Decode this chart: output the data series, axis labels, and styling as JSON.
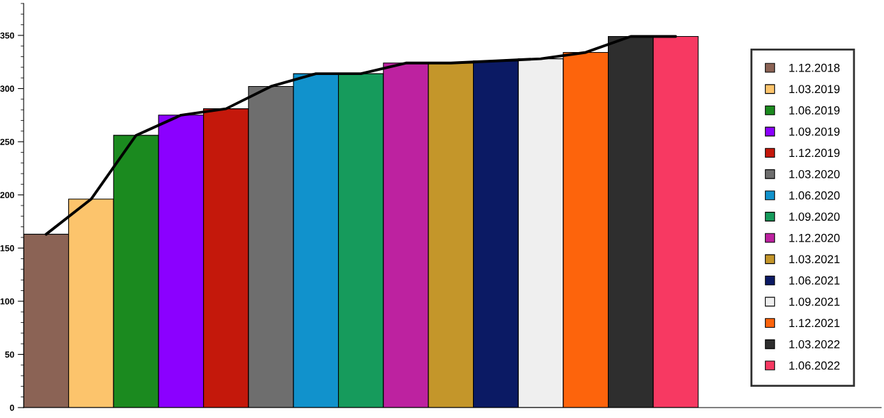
{
  "chart_data": {
    "type": "bar",
    "categories": [
      null,
      null,
      null,
      null,
      null,
      null,
      null,
      null,
      null,
      null,
      null,
      null,
      null,
      null,
      null
    ],
    "series": [
      {
        "name": "1.12.2018",
        "color": "#8b6355",
        "values": [
          163,
          null,
          null,
          null,
          null,
          null,
          null,
          null,
          null,
          null,
          null,
          null,
          null,
          null,
          null
        ]
      },
      {
        "name": "1.03.2019",
        "color": "#fcc46c",
        "values": [
          null,
          196,
          null,
          null,
          null,
          null,
          null,
          null,
          null,
          null,
          null,
          null,
          null,
          null,
          null
        ]
      },
      {
        "name": "1.06.2019",
        "color": "#1b8a1f",
        "values": [
          null,
          null,
          256,
          null,
          null,
          null,
          null,
          null,
          null,
          null,
          null,
          null,
          null,
          null,
          null
        ]
      },
      {
        "name": "1.09.2019",
        "color": "#8b00ff",
        "values": [
          null,
          null,
          null,
          275,
          null,
          null,
          null,
          null,
          null,
          null,
          null,
          null,
          null,
          null,
          null
        ]
      },
      {
        "name": "1.12.2019",
        "color": "#c4180b",
        "values": [
          null,
          null,
          null,
          null,
          281,
          null,
          null,
          null,
          null,
          null,
          null,
          null,
          null,
          null,
          null
        ]
      },
      {
        "name": "1.03.2020",
        "color": "#6e6e6e",
        "values": [
          null,
          null,
          null,
          null,
          null,
          302,
          null,
          null,
          null,
          null,
          null,
          null,
          null,
          null,
          null
        ]
      },
      {
        "name": "1.06.2020",
        "color": "#1192cc",
        "values": [
          null,
          null,
          null,
          null,
          null,
          null,
          314,
          null,
          null,
          null,
          null,
          null,
          null,
          null,
          null
        ]
      },
      {
        "name": "1.09.2020",
        "color": "#169b5c",
        "values": [
          null,
          null,
          null,
          null,
          null,
          null,
          null,
          314,
          null,
          null,
          null,
          null,
          null,
          null,
          null
        ]
      },
      {
        "name": "1.12.2020",
        "color": "#bd22a0",
        "values": [
          null,
          null,
          null,
          null,
          null,
          null,
          null,
          null,
          324,
          null,
          null,
          null,
          null,
          null,
          null
        ]
      },
      {
        "name": "1.03.2021",
        "color": "#c4962a",
        "values": [
          null,
          null,
          null,
          null,
          null,
          null,
          null,
          null,
          null,
          324,
          null,
          null,
          null,
          null,
          null
        ]
      },
      {
        "name": "1.06.2021",
        "color": "#0b1a64",
        "values": [
          null,
          null,
          null,
          null,
          null,
          null,
          null,
          null,
          null,
          null,
          326,
          null,
          null,
          null,
          null
        ]
      },
      {
        "name": "1.09.2021",
        "color": "#efefef",
        "values": [
          null,
          null,
          null,
          null,
          null,
          null,
          null,
          null,
          null,
          null,
          null,
          328,
          null,
          null,
          null
        ]
      },
      {
        "name": "1.12.2021",
        "color": "#fd640c",
        "values": [
          null,
          null,
          null,
          null,
          null,
          null,
          null,
          null,
          null,
          null,
          null,
          null,
          334,
          null,
          null
        ]
      },
      {
        "name": "1.03.2022",
        "color": "#2e2e2e",
        "values": [
          null,
          null,
          null,
          null,
          null,
          null,
          null,
          null,
          null,
          null,
          null,
          null,
          null,
          349,
          null
        ]
      },
      {
        "name": "1.06.2022",
        "color": "#f73962",
        "values": [
          null,
          null,
          null,
          null,
          null,
          null,
          null,
          null,
          null,
          null,
          null,
          null,
          null,
          null,
          349
        ]
      },
      {
        "type": "line",
        "color": "#000000",
        "values": [
          163,
          196,
          256,
          275,
          281,
          302,
          314,
          314,
          324,
          324,
          326,
          328,
          334,
          349,
          349
        ]
      }
    ],
    "ylim": [
      0,
      380
    ],
    "yticks": [
      0,
      50,
      100,
      150,
      200,
      250,
      300,
      350
    ],
    "tick_labels": "y",
    "legend": "right",
    "grid": false
  }
}
